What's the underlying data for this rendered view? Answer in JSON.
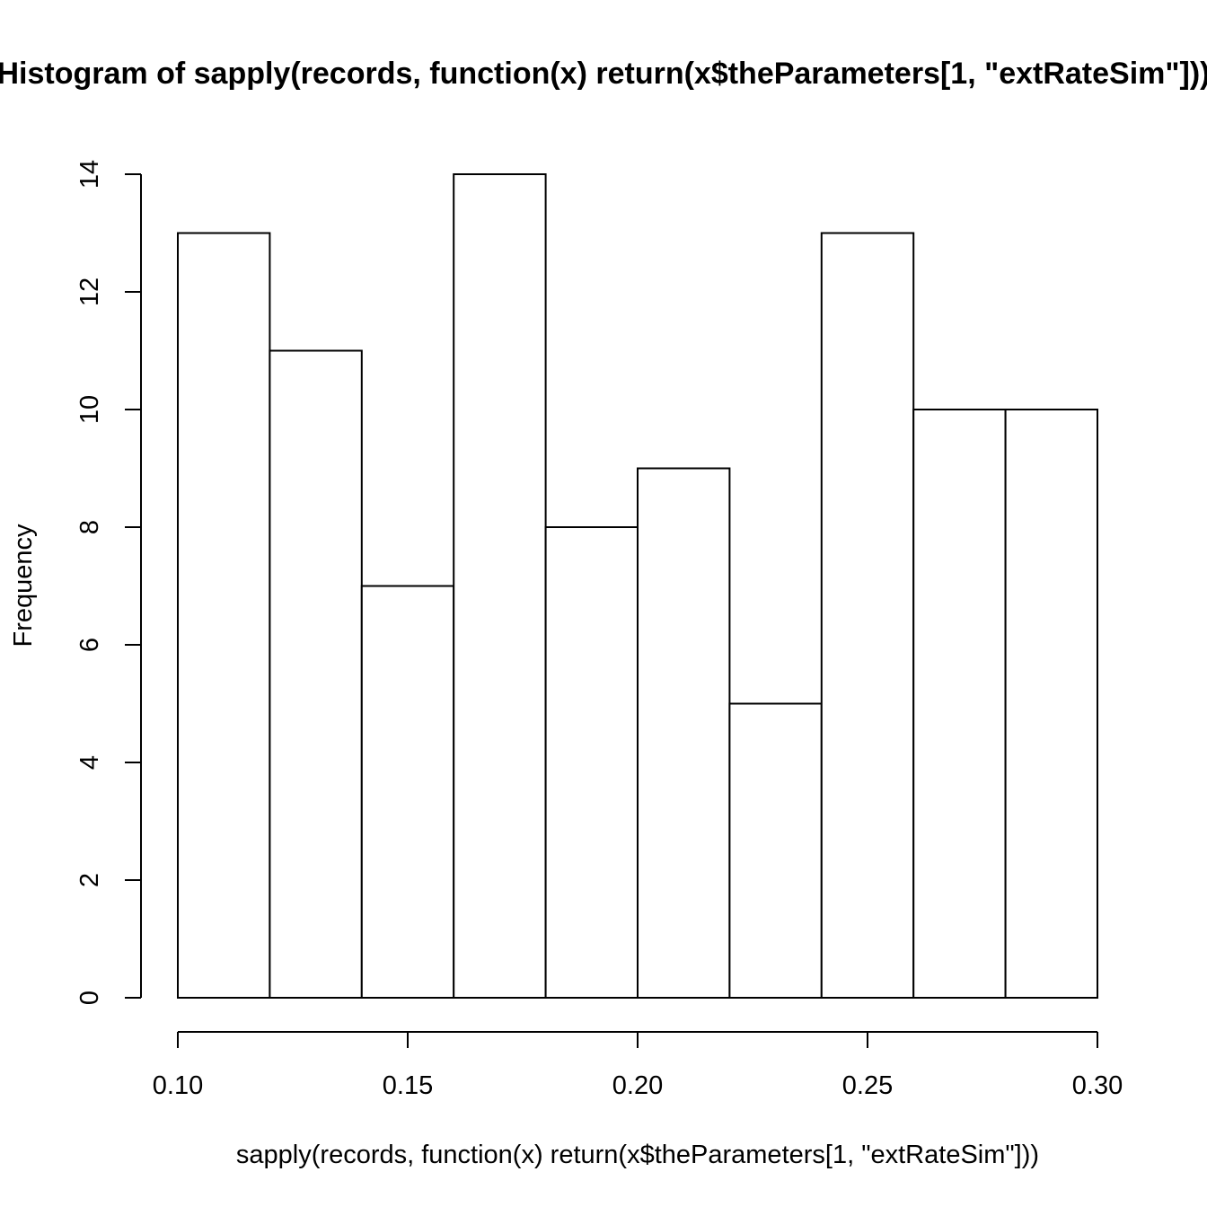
{
  "chart_data": {
    "type": "bar",
    "title": "Histogram of sapply(records, function(x) return(x$theParameters[1, \"extRateSim\"]))",
    "xlabel": "sapply(records, function(x) return(x$theParameters[1, \"extRateSim\"]))",
    "ylabel": "Frequency",
    "bins": [
      {
        "from": 0.1,
        "to": 0.12,
        "count": 13
      },
      {
        "from": 0.12,
        "to": 0.14,
        "count": 11
      },
      {
        "from": 0.14,
        "to": 0.16,
        "count": 7
      },
      {
        "from": 0.16,
        "to": 0.18,
        "count": 14
      },
      {
        "from": 0.18,
        "to": 0.2,
        "count": 8
      },
      {
        "from": 0.2,
        "to": 0.22,
        "count": 9
      },
      {
        "from": 0.22,
        "to": 0.24,
        "count": 5
      },
      {
        "from": 0.24,
        "to": 0.26,
        "count": 13
      },
      {
        "from": 0.26,
        "to": 0.28,
        "count": 10
      },
      {
        "from": 0.28,
        "to": 0.3,
        "count": 10
      }
    ],
    "xlim": [
      0.1,
      0.3
    ],
    "ylim": [
      0,
      14
    ],
    "x_ticks": [
      0.1,
      0.15,
      0.2,
      0.25,
      0.3
    ],
    "x_tick_labels": [
      "0.10",
      "0.15",
      "0.20",
      "0.25",
      "0.30"
    ],
    "y_ticks": [
      0,
      2,
      4,
      6,
      8,
      10,
      12,
      14
    ],
    "y_tick_labels": [
      "0",
      "2",
      "4",
      "6",
      "8",
      "10",
      "12",
      "14"
    ],
    "grid": false,
    "legend": "none",
    "colors": {
      "bar_fill": "#ffffff",
      "bar_stroke": "#000000",
      "text": "#000000"
    }
  }
}
